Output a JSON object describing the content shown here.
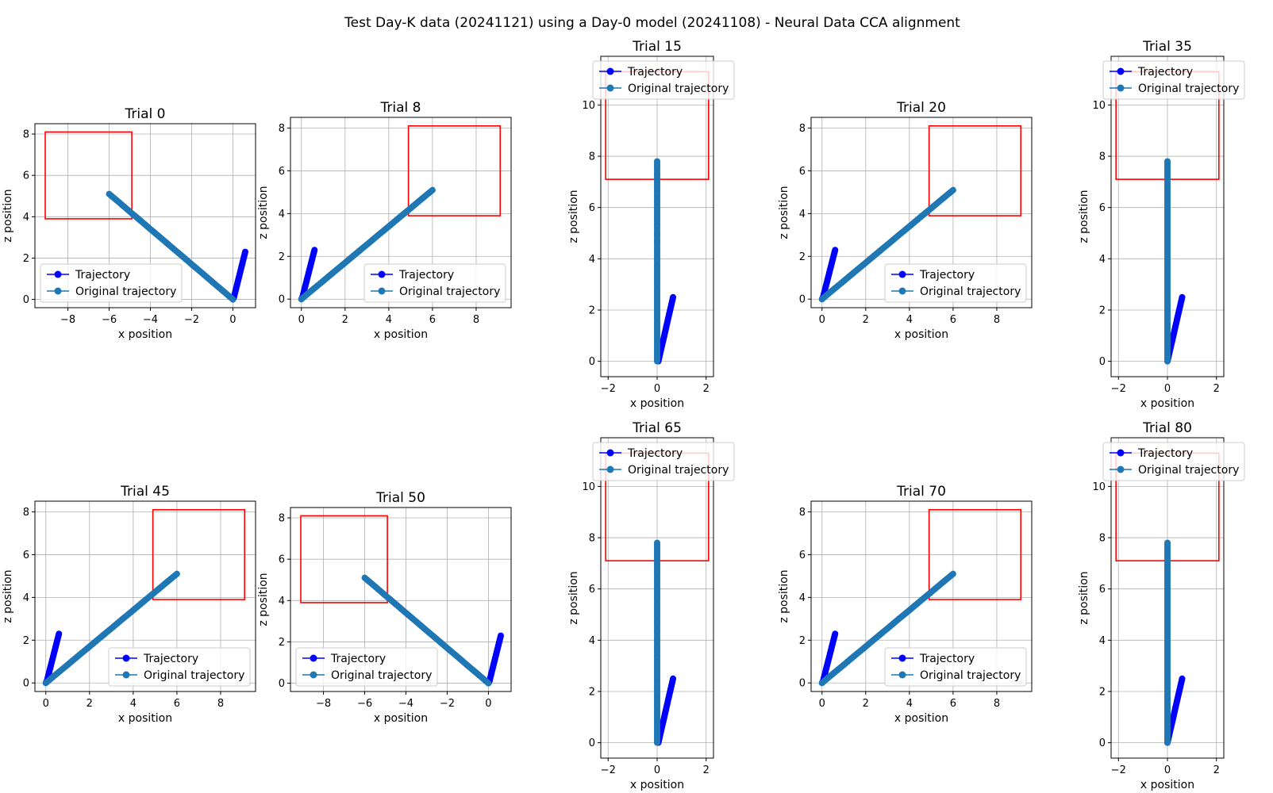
{
  "figure": {
    "suptitle": "Test Day-K data (20241121) using a Day-0 model (20241108) - Neural Data CCA alignment"
  },
  "chart_data": [
    {
      "type": "line",
      "title": "Trial 0",
      "xlabel": "x position",
      "ylabel": "z position",
      "xlim": [
        -9.6,
        1.1
      ],
      "ylim": [
        -0.4,
        8.5
      ],
      "xticks": [
        -8,
        -6,
        -4,
        -2,
        0
      ],
      "yticks": [
        0,
        2,
        4,
        6,
        8
      ],
      "grid": true,
      "legend": {
        "position": "lower-left",
        "entries": [
          "Trajectory",
          "Original trajectory"
        ]
      },
      "target_box": {
        "x": [
          -9.1,
          -4.9
        ],
        "z": [
          3.9,
          8.1
        ]
      },
      "series": [
        {
          "name": "Trajectory",
          "color": "#0000ff",
          "x": [
            0.6,
            0.55,
            0.5,
            0.45,
            0.4,
            0.35,
            0.3,
            0.25,
            0.2,
            0.15,
            0.1,
            0.05,
            0.0
          ],
          "y": [
            2.3,
            2.1,
            1.9,
            1.7,
            1.5,
            1.3,
            1.1,
            0.9,
            0.7,
            0.5,
            0.3,
            0.1,
            0.0
          ]
        },
        {
          "name": "Original trajectory",
          "color": "#1f77b4",
          "x": [
            -6.0,
            -5.5,
            -5.0,
            -4.5,
            -4.0,
            -3.5,
            -3.0,
            -2.5,
            -2.0,
            -1.5,
            -1.0,
            -0.5,
            0.0
          ],
          "y": [
            5.1,
            4.68,
            4.25,
            3.83,
            3.4,
            2.98,
            2.55,
            2.13,
            1.7,
            1.28,
            0.85,
            0.43,
            0.0
          ]
        }
      ]
    },
    {
      "type": "line",
      "title": "Trial 8",
      "xlabel": "x position",
      "ylabel": "z position",
      "xlim": [
        -0.5,
        9.6
      ],
      "ylim": [
        -0.4,
        8.5
      ],
      "xticks": [
        0,
        2,
        4,
        6,
        8
      ],
      "yticks": [
        0,
        2,
        4,
        6,
        8
      ],
      "grid": true,
      "legend": {
        "position": "lower-right",
        "entries": [
          "Trajectory",
          "Original trajectory"
        ]
      },
      "target_box": {
        "x": [
          4.9,
          9.1
        ],
        "z": [
          3.9,
          8.1
        ]
      },
      "series": [
        {
          "name": "Trajectory",
          "color": "#0000ff",
          "x": [
            0.6,
            0.55,
            0.5,
            0.45,
            0.4,
            0.35,
            0.3,
            0.25,
            0.2,
            0.15,
            0.1,
            0.05,
            0.0
          ],
          "y": [
            2.3,
            2.1,
            1.9,
            1.7,
            1.5,
            1.3,
            1.1,
            0.9,
            0.7,
            0.5,
            0.3,
            0.1,
            0.0
          ]
        },
        {
          "name": "Original trajectory",
          "color": "#1f77b4",
          "x": [
            0.0,
            0.5,
            1.0,
            1.5,
            2.0,
            2.5,
            3.0,
            3.5,
            4.0,
            4.5,
            5.0,
            5.5,
            6.0
          ],
          "y": [
            0.0,
            0.43,
            0.85,
            1.28,
            1.7,
            2.13,
            2.55,
            2.98,
            3.4,
            3.83,
            4.25,
            4.68,
            5.1
          ]
        }
      ]
    },
    {
      "type": "line",
      "title": "Trial 15",
      "xlabel": "x position",
      "ylabel": "z position",
      "xlim": [
        -2.3,
        2.3
      ],
      "ylim": [
        -0.6,
        11.9
      ],
      "xticks": [
        -2,
        0,
        2
      ],
      "yticks": [
        0,
        2,
        4,
        6,
        8,
        10
      ],
      "grid": true,
      "legend": {
        "position": "upper-left",
        "entries": [
          "Trajectory",
          "Original trajectory"
        ]
      },
      "target_box": {
        "x": [
          -2.1,
          2.1
        ],
        "z": [
          7.1,
          11.3
        ]
      },
      "series": [
        {
          "name": "Trajectory",
          "color": "#0000ff",
          "x": [
            0.65,
            0.6,
            0.55,
            0.5,
            0.45,
            0.4,
            0.35,
            0.3,
            0.25,
            0.2,
            0.15,
            0.1,
            0.05
          ],
          "y": [
            2.5,
            2.29,
            2.08,
            1.88,
            1.67,
            1.46,
            1.25,
            1.04,
            0.83,
            0.63,
            0.42,
            0.21,
            0.0
          ]
        },
        {
          "name": "Original trajectory",
          "color": "#1f77b4",
          "x": [
            0,
            0,
            0,
            0,
            0,
            0,
            0,
            0,
            0,
            0,
            0,
            0,
            0
          ],
          "y": [
            0.0,
            0.65,
            1.3,
            1.95,
            2.6,
            3.25,
            3.9,
            4.55,
            5.2,
            5.85,
            6.5,
            7.15,
            7.8
          ]
        }
      ]
    },
    {
      "type": "line",
      "title": "Trial 20",
      "xlabel": "x position",
      "ylabel": "z position",
      "xlim": [
        -0.5,
        9.6
      ],
      "ylim": [
        -0.4,
        8.5
      ],
      "xticks": [
        0,
        2,
        4,
        6,
        8
      ],
      "yticks": [
        0,
        2,
        4,
        6,
        8
      ],
      "grid": true,
      "legend": {
        "position": "lower-right",
        "entries": [
          "Trajectory",
          "Original trajectory"
        ]
      },
      "target_box": {
        "x": [
          4.9,
          9.1
        ],
        "z": [
          3.9,
          8.1
        ]
      },
      "series": [
        {
          "name": "Trajectory",
          "color": "#0000ff",
          "x": [
            0.6,
            0.55,
            0.5,
            0.45,
            0.4,
            0.35,
            0.3,
            0.25,
            0.2,
            0.15,
            0.1,
            0.05,
            0.0
          ],
          "y": [
            2.3,
            2.1,
            1.9,
            1.7,
            1.5,
            1.3,
            1.1,
            0.9,
            0.7,
            0.5,
            0.3,
            0.1,
            0.0
          ]
        },
        {
          "name": "Original trajectory",
          "color": "#1f77b4",
          "x": [
            0.0,
            0.5,
            1.0,
            1.5,
            2.0,
            2.5,
            3.0,
            3.5,
            4.0,
            4.5,
            5.0,
            5.5,
            6.0
          ],
          "y": [
            0.0,
            0.43,
            0.85,
            1.28,
            1.7,
            2.13,
            2.55,
            2.98,
            3.4,
            3.83,
            4.25,
            4.68,
            5.1
          ]
        }
      ]
    },
    {
      "type": "line",
      "title": "Trial 35",
      "xlabel": "x position",
      "ylabel": "z position",
      "xlim": [
        -2.3,
        2.3
      ],
      "ylim": [
        -0.6,
        11.9
      ],
      "xticks": [
        -2,
        0,
        2
      ],
      "yticks": [
        0,
        2,
        4,
        6,
        8,
        10
      ],
      "grid": true,
      "legend": {
        "position": "upper-left",
        "entries": [
          "Trajectory",
          "Original trajectory"
        ]
      },
      "target_box": {
        "x": [
          -2.1,
          2.1
        ],
        "z": [
          7.1,
          11.3
        ]
      },
      "series": [
        {
          "name": "Trajectory",
          "color": "#0000ff",
          "x": [
            0.6,
            0.55,
            0.5,
            0.45,
            0.4,
            0.35,
            0.3,
            0.25,
            0.2,
            0.15,
            0.1,
            0.05,
            0.0
          ],
          "y": [
            2.5,
            2.29,
            2.08,
            1.88,
            1.67,
            1.46,
            1.25,
            1.04,
            0.83,
            0.63,
            0.42,
            0.21,
            0.0
          ]
        },
        {
          "name": "Original trajectory",
          "color": "#1f77b4",
          "x": [
            0,
            0,
            0,
            0,
            0,
            0,
            0,
            0,
            0,
            0,
            0,
            0,
            0
          ],
          "y": [
            0.0,
            0.65,
            1.3,
            1.95,
            2.6,
            3.25,
            3.9,
            4.55,
            5.2,
            5.85,
            6.5,
            7.15,
            7.8
          ]
        }
      ]
    },
    {
      "type": "line",
      "title": "Trial 45",
      "xlabel": "x position",
      "ylabel": "z position",
      "xlim": [
        -0.5,
        9.6
      ],
      "ylim": [
        -0.4,
        8.5
      ],
      "xticks": [
        0,
        2,
        4,
        6,
        8
      ],
      "yticks": [
        0,
        2,
        4,
        6,
        8
      ],
      "grid": true,
      "legend": {
        "position": "lower-right",
        "entries": [
          "Trajectory",
          "Original trajectory"
        ]
      },
      "target_box": {
        "x": [
          4.9,
          9.1
        ],
        "z": [
          3.9,
          8.1
        ]
      },
      "series": [
        {
          "name": "Trajectory",
          "color": "#0000ff",
          "x": [
            0.6,
            0.55,
            0.5,
            0.45,
            0.4,
            0.35,
            0.3,
            0.25,
            0.2,
            0.15,
            0.1,
            0.05,
            0.0
          ],
          "y": [
            2.3,
            2.1,
            1.9,
            1.7,
            1.5,
            1.3,
            1.1,
            0.9,
            0.7,
            0.5,
            0.3,
            0.1,
            0.0
          ]
        },
        {
          "name": "Original trajectory",
          "color": "#1f77b4",
          "x": [
            0.0,
            0.5,
            1.0,
            1.5,
            2.0,
            2.5,
            3.0,
            3.5,
            4.0,
            4.5,
            5.0,
            5.5,
            6.0
          ],
          "y": [
            0.0,
            0.43,
            0.85,
            1.28,
            1.7,
            2.13,
            2.55,
            2.98,
            3.4,
            3.83,
            4.25,
            4.68,
            5.1
          ]
        }
      ]
    },
    {
      "type": "line",
      "title": "Trial 50",
      "xlabel": "x position",
      "ylabel": "z position",
      "xlim": [
        -9.6,
        1.1
      ],
      "ylim": [
        -0.4,
        8.5
      ],
      "xticks": [
        -8,
        -6,
        -4,
        -2,
        0
      ],
      "yticks": [
        0,
        2,
        4,
        6,
        8
      ],
      "grid": true,
      "legend": {
        "position": "lower-left",
        "entries": [
          "Trajectory",
          "Original trajectory"
        ]
      },
      "target_box": {
        "x": [
          -9.1,
          -4.9
        ],
        "z": [
          3.9,
          8.1
        ]
      },
      "series": [
        {
          "name": "Trajectory",
          "color": "#0000ff",
          "x": [
            0.6,
            0.55,
            0.5,
            0.45,
            0.4,
            0.35,
            0.3,
            0.25,
            0.2,
            0.15,
            0.1,
            0.05,
            0.0
          ],
          "y": [
            2.3,
            2.1,
            1.9,
            1.7,
            1.5,
            1.3,
            1.1,
            0.9,
            0.7,
            0.5,
            0.3,
            0.1,
            0.0
          ]
        },
        {
          "name": "Original trajectory",
          "color": "#1f77b4",
          "x": [
            -6.0,
            -5.5,
            -5.0,
            -4.5,
            -4.0,
            -3.5,
            -3.0,
            -2.5,
            -2.0,
            -1.5,
            -1.0,
            -0.5,
            0.0
          ],
          "y": [
            5.1,
            4.68,
            4.25,
            3.83,
            3.4,
            2.98,
            2.55,
            2.13,
            1.7,
            1.28,
            0.85,
            0.43,
            0.0
          ]
        }
      ]
    },
    {
      "type": "line",
      "title": "Trial 65",
      "xlabel": "x position",
      "ylabel": "z position",
      "xlim": [
        -2.3,
        2.3
      ],
      "ylim": [
        -0.6,
        11.9
      ],
      "xticks": [
        -2,
        0,
        2
      ],
      "yticks": [
        0,
        2,
        4,
        6,
        8,
        10
      ],
      "grid": true,
      "legend": {
        "position": "upper-left",
        "entries": [
          "Trajectory",
          "Original trajectory"
        ]
      },
      "target_box": {
        "x": [
          -2.1,
          2.1
        ],
        "z": [
          7.1,
          11.3
        ]
      },
      "series": [
        {
          "name": "Trajectory",
          "color": "#0000ff",
          "x": [
            0.65,
            0.6,
            0.55,
            0.5,
            0.45,
            0.4,
            0.35,
            0.3,
            0.25,
            0.2,
            0.15,
            0.1,
            0.05
          ],
          "y": [
            2.5,
            2.29,
            2.08,
            1.88,
            1.67,
            1.46,
            1.25,
            1.04,
            0.83,
            0.63,
            0.42,
            0.21,
            0.0
          ]
        },
        {
          "name": "Original trajectory",
          "color": "#1f77b4",
          "x": [
            0,
            0,
            0,
            0,
            0,
            0,
            0,
            0,
            0,
            0,
            0,
            0,
            0
          ],
          "y": [
            0.0,
            0.65,
            1.3,
            1.95,
            2.6,
            3.25,
            3.9,
            4.55,
            5.2,
            5.85,
            6.5,
            7.15,
            7.8
          ]
        }
      ]
    },
    {
      "type": "line",
      "title": "Trial 70",
      "xlabel": "x position",
      "ylabel": "z position",
      "xlim": [
        -0.5,
        9.6
      ],
      "ylim": [
        -0.4,
        8.5
      ],
      "xticks": [
        0,
        2,
        4,
        6,
        8
      ],
      "yticks": [
        0,
        2,
        4,
        6,
        8
      ],
      "grid": true,
      "legend": {
        "position": "lower-right",
        "entries": [
          "Trajectory",
          "Original trajectory"
        ]
      },
      "target_box": {
        "x": [
          4.9,
          9.1
        ],
        "z": [
          3.9,
          8.1
        ]
      },
      "series": [
        {
          "name": "Trajectory",
          "color": "#0000ff",
          "x": [
            0.6,
            0.55,
            0.5,
            0.45,
            0.4,
            0.35,
            0.3,
            0.25,
            0.2,
            0.15,
            0.1,
            0.05,
            0.0
          ],
          "y": [
            2.3,
            2.1,
            1.9,
            1.7,
            1.5,
            1.3,
            1.1,
            0.9,
            0.7,
            0.5,
            0.3,
            0.1,
            0.0
          ]
        },
        {
          "name": "Original trajectory",
          "color": "#1f77b4",
          "x": [
            0.0,
            0.5,
            1.0,
            1.5,
            2.0,
            2.5,
            3.0,
            3.5,
            4.0,
            4.5,
            5.0,
            5.5,
            6.0
          ],
          "y": [
            0.0,
            0.43,
            0.85,
            1.28,
            1.7,
            2.13,
            2.55,
            2.98,
            3.4,
            3.83,
            4.25,
            4.68,
            5.1
          ]
        }
      ]
    },
    {
      "type": "line",
      "title": "Trial 80",
      "xlabel": "x position",
      "ylabel": "z position",
      "xlim": [
        -2.3,
        2.3
      ],
      "ylim": [
        -0.6,
        11.9
      ],
      "xticks": [
        -2,
        0,
        2
      ],
      "yticks": [
        0,
        2,
        4,
        6,
        8,
        10
      ],
      "grid": true,
      "legend": {
        "position": "upper-left",
        "entries": [
          "Trajectory",
          "Original trajectory"
        ]
      },
      "target_box": {
        "x": [
          -2.1,
          2.1
        ],
        "z": [
          7.1,
          11.3
        ]
      },
      "series": [
        {
          "name": "Trajectory",
          "color": "#0000ff",
          "x": [
            0.6,
            0.55,
            0.5,
            0.45,
            0.4,
            0.35,
            0.3,
            0.25,
            0.2,
            0.15,
            0.1,
            0.05,
            0.0
          ],
          "y": [
            2.5,
            2.29,
            2.08,
            1.88,
            1.67,
            1.46,
            1.25,
            1.04,
            0.83,
            0.63,
            0.42,
            0.21,
            0.0
          ]
        },
        {
          "name": "Original trajectory",
          "color": "#1f77b4",
          "x": [
            0,
            0,
            0,
            0,
            0,
            0,
            0,
            0,
            0,
            0,
            0,
            0,
            0
          ],
          "y": [
            0.0,
            0.65,
            1.3,
            1.95,
            2.6,
            3.25,
            3.9,
            4.55,
            5.2,
            5.85,
            6.5,
            7.15,
            7.8
          ]
        }
      ]
    }
  ]
}
